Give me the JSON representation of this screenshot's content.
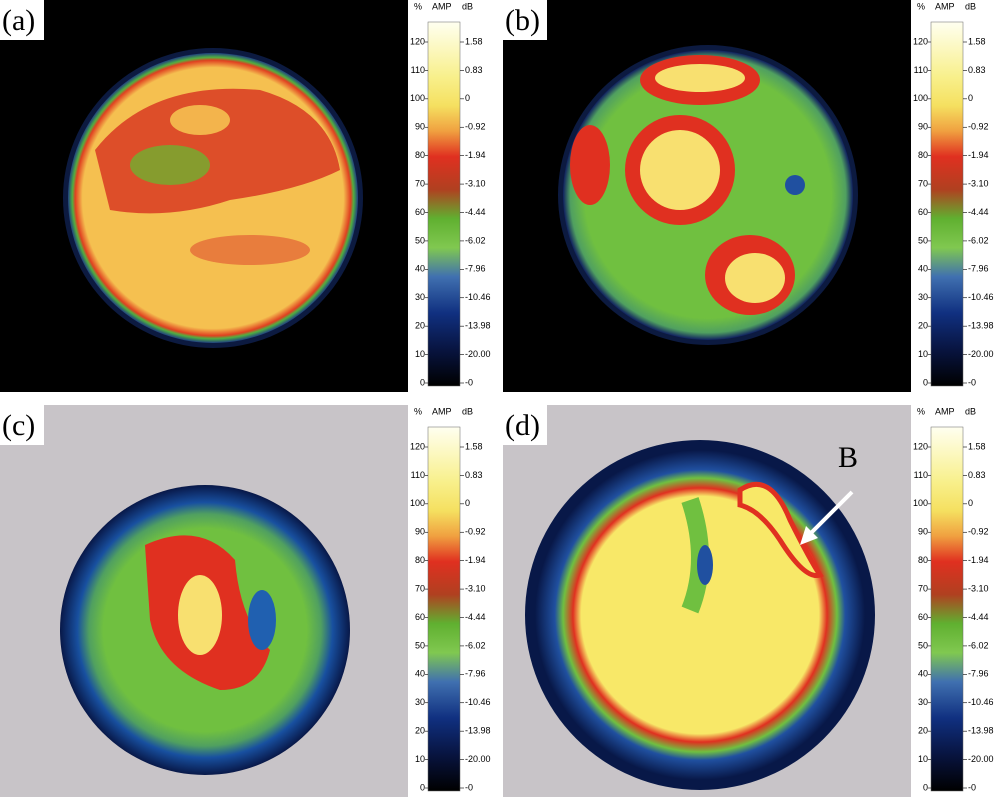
{
  "panels": [
    {
      "label": "(a)"
    },
    {
      "label": "(b)"
    },
    {
      "label": "(c)"
    },
    {
      "label": "(d)"
    }
  ],
  "annotation": "B",
  "scale": {
    "percent_header": "%",
    "amp_header": "AMP",
    "db_header": "dB",
    "percent_ticks": [
      "120",
      "110",
      "100",
      "90",
      "80",
      "70",
      "60",
      "50",
      "40",
      "30",
      "20",
      "10",
      "0"
    ],
    "db_ticks": [
      "1.58",
      "0.83",
      "0",
      "-0.92",
      "-1.94",
      "-3.10",
      "-4.44",
      "-6.02",
      "-7.96",
      "-10.46",
      "-13.98",
      "-20.00",
      "-0"
    ]
  }
}
